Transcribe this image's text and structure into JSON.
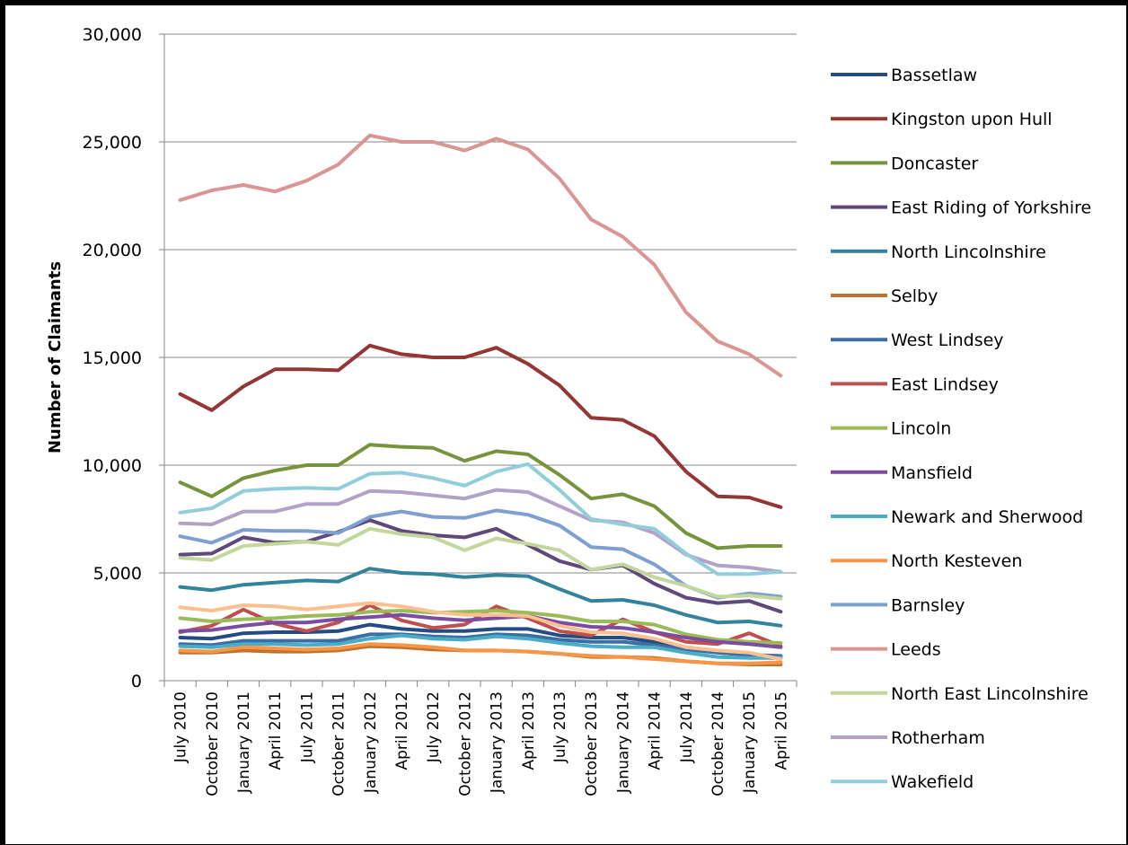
{
  "chart_data": {
    "type": "line",
    "title": "",
    "xlabel": "",
    "ylabel": "Number of Claimants",
    "ylim": [
      0,
      30000
    ],
    "y_ticks": [
      "0",
      "5,000",
      "10,000",
      "15,000",
      "20,000",
      "25,000",
      "30,000"
    ],
    "y_tick_values": [
      0,
      5000,
      10000,
      15000,
      20000,
      25000,
      30000
    ],
    "grid": "horizontal",
    "legend_position": "right",
    "categories": [
      "July 2010",
      "October 2010",
      "January 2011",
      "April 2011",
      "July 2011",
      "October 2011",
      "January 2012",
      "April 2012",
      "July 2012",
      "October 2012",
      "January 2013",
      "April 2013",
      "July 2013",
      "October 2013",
      "January 2014",
      "April 2014",
      "July 2014",
      "October 2014",
      "January 2015",
      "April 2015"
    ],
    "series": [
      {
        "name": "Bassetlaw",
        "color": "#254c82",
        "values": [
          2000,
          1950,
          2200,
          2250,
          2250,
          2300,
          2600,
          2400,
          2300,
          2300,
          2400,
          2400,
          2100,
          2000,
          2000,
          1800,
          1500,
          1300,
          1200,
          1100
        ]
      },
      {
        "name": "Kingston upon Hull",
        "color": "#943634",
        "values": [
          13300,
          12550,
          13650,
          14450,
          14450,
          14400,
          15550,
          15150,
          15000,
          15000,
          15450,
          14700,
          13700,
          12200,
          12100,
          11350,
          9700,
          8550,
          8500,
          8050
        ]
      },
      {
        "name": "Doncaster",
        "color": "#77933c",
        "values": [
          9200,
          8550,
          9400,
          9750,
          10000,
          10000,
          10950,
          10850,
          10800,
          10200,
          10650,
          10500,
          9550,
          8450,
          8650,
          8100,
          6850,
          6150,
          6250,
          6250
        ]
      },
      {
        "name": "East Riding of Yorkshire",
        "color": "#5f497a",
        "values": [
          5850,
          5900,
          6650,
          6400,
          6450,
          6900,
          7450,
          6950,
          6750,
          6650,
          7050,
          6300,
          5550,
          5150,
          5350,
          4500,
          3850,
          3600,
          3700,
          3200
        ]
      },
      {
        "name": "North Lincolnshire",
        "color": "#31849b",
        "values": [
          4350,
          4200,
          4450,
          4550,
          4650,
          4600,
          5200,
          5000,
          4950,
          4800,
          4900,
          4850,
          4250,
          3700,
          3750,
          3500,
          3050,
          2700,
          2750,
          2550
        ]
      },
      {
        "name": "Selby",
        "color": "#c0722f",
        "values": [
          1300,
          1300,
          1400,
          1350,
          1350,
          1400,
          1600,
          1550,
          1450,
          1400,
          1400,
          1350,
          1250,
          1100,
          1100,
          1050,
          900,
          800,
          750,
          750
        ]
      },
      {
        "name": "West Lindsey",
        "color": "#3a6ea5",
        "values": [
          1700,
          1650,
          1850,
          1850,
          1850,
          1850,
          2150,
          2150,
          2050,
          2000,
          2150,
          2100,
          1900,
          1800,
          1800,
          1650,
          1450,
          1300,
          1200,
          1150
        ]
      },
      {
        "name": "East Lindsey",
        "color": "#c0504d",
        "values": [
          2250,
          2550,
          3300,
          2650,
          2300,
          2700,
          3500,
          2800,
          2450,
          2600,
          3450,
          2900,
          2300,
          2100,
          2850,
          2250,
          1800,
          1700,
          2200,
          1600
        ]
      },
      {
        "name": "Lincoln",
        "color": "#9bbb59",
        "values": [
          2900,
          2750,
          2850,
          2900,
          3000,
          3050,
          3200,
          3250,
          3150,
          3200,
          3250,
          3150,
          3000,
          2750,
          2750,
          2600,
          2150,
          1900,
          1800,
          1750
        ]
      },
      {
        "name": "Mansfield",
        "color": "#7c4ca0",
        "values": [
          2300,
          2350,
          2550,
          2700,
          2700,
          2850,
          2950,
          3050,
          2900,
          2800,
          2900,
          3000,
          2700,
          2500,
          2450,
          2250,
          2000,
          1800,
          1700,
          1550
        ]
      },
      {
        "name": "Newark and Sherwood",
        "color": "#4bacc6",
        "values": [
          1600,
          1550,
          1700,
          1700,
          1650,
          1700,
          1950,
          2100,
          1950,
          1900,
          2050,
          1950,
          1750,
          1600,
          1550,
          1550,
          1300,
          1100,
          1050,
          1050
        ]
      },
      {
        "name": "North Kesteven",
        "color": "#f79646",
        "values": [
          1400,
          1350,
          1550,
          1500,
          1450,
          1500,
          1700,
          1650,
          1550,
          1400,
          1400,
          1350,
          1250,
          1150,
          1100,
          1000,
          900,
          800,
          800,
          850
        ]
      },
      {
        "name": "Barnsley",
        "color": "#7f9fd0",
        "values": [
          6700,
          6400,
          7000,
          6950,
          6950,
          6850,
          7600,
          7850,
          7600,
          7550,
          7900,
          7700,
          7200,
          6200,
          6100,
          5400,
          4400,
          3850,
          4050,
          3900
        ]
      },
      {
        "name": "Leeds",
        "color": "#d99694",
        "values": [
          22300,
          22750,
          23000,
          22700,
          23200,
          23950,
          25300,
          25000,
          25000,
          24600,
          25150,
          24650,
          23300,
          21400,
          20600,
          19300,
          17100,
          15750,
          15150,
          14150
        ]
      },
      {
        "name": "North East Lincolnshire",
        "color": "#c3d69b",
        "values": [
          5700,
          5600,
          6250,
          6350,
          6450,
          6300,
          7050,
          6800,
          6650,
          6050,
          6600,
          6350,
          6050,
          5150,
          5400,
          4800,
          4400,
          3900,
          3950,
          3800
        ]
      },
      {
        "name": "Rotherham",
        "color": "#b3a2c7",
        "values": [
          7300,
          7250,
          7850,
          7850,
          8200,
          8200,
          8800,
          8750,
          8600,
          8450,
          8850,
          8750,
          8100,
          7450,
          7350,
          6850,
          5850,
          5350,
          5250,
          5050
        ]
      },
      {
        "name": "Wakefield",
        "color": "#92cddc",
        "values": [
          7800,
          8000,
          8800,
          8900,
          8950,
          8900,
          9600,
          9650,
          9400,
          9050,
          9700,
          10050,
          8850,
          7500,
          7250,
          7050,
          5900,
          4950,
          4950,
          5050
        ]
      },
      {
        "name": "",
        "color": "#fac090",
        "values": [
          3400,
          3250,
          3500,
          3450,
          3300,
          3450,
          3600,
          3450,
          3200,
          3050,
          3050,
          3000,
          2550,
          2250,
          2200,
          1950,
          1550,
          1400,
          1300,
          1000
        ]
      }
    ]
  }
}
